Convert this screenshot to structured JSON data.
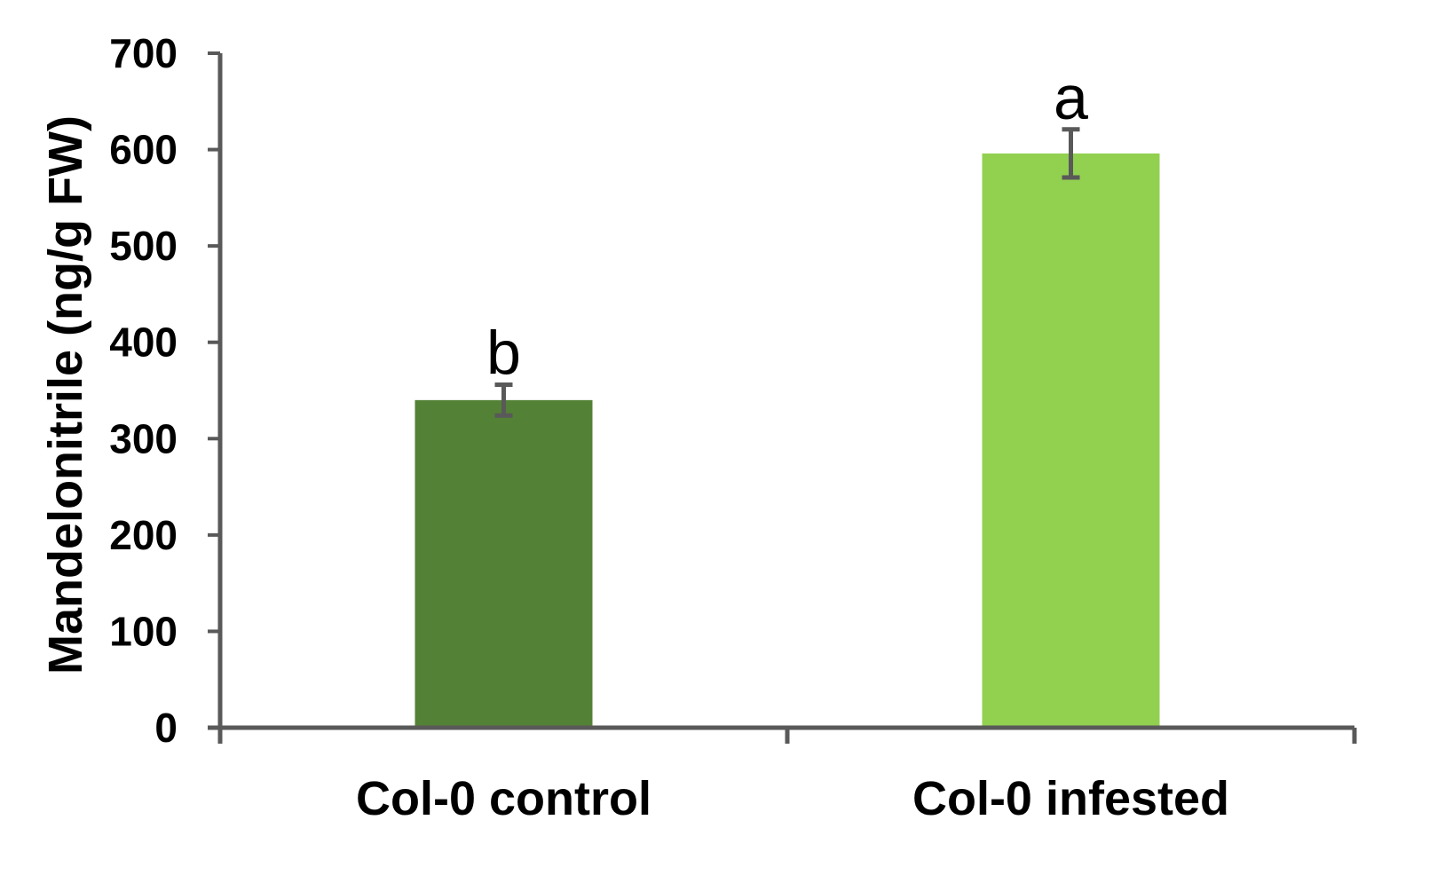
{
  "chart_data": {
    "type": "bar",
    "title": "",
    "xlabel": "",
    "ylabel": "Mandelonitrile (ng/g FW)",
    "ylim": [
      0,
      700
    ],
    "yticks": [
      0,
      100,
      200,
      300,
      400,
      500,
      600,
      700
    ],
    "grid": false,
    "legend": "none",
    "categories": [
      "Col-0 control",
      "Col-0 infested"
    ],
    "values": [
      340,
      596
    ],
    "errors": [
      16,
      25
    ],
    "significance": [
      "b",
      "a"
    ],
    "colors": [
      "#538135",
      "#92d050"
    ],
    "axis_color": "#595959"
  }
}
